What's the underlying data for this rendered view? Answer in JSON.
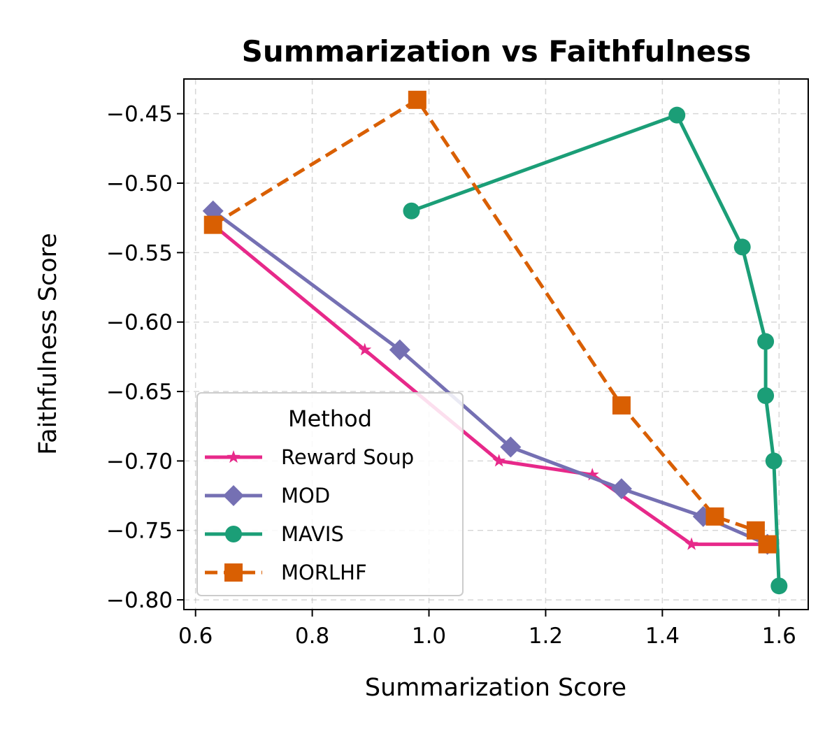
{
  "chart_data": {
    "type": "line",
    "title": "Summarization vs Faithfulness",
    "xlabel": "Summarization Score",
    "ylabel": "Faithfulness Score",
    "xlim": [
      0.58,
      1.65
    ],
    "ylim": [
      -0.807,
      -0.425
    ],
    "xticks": [
      0.6,
      0.8,
      1.0,
      1.2,
      1.4,
      1.6
    ],
    "xtick_labels": [
      "0.6",
      "0.8",
      "1.0",
      "1.2",
      "1.4",
      "1.6"
    ],
    "yticks": [
      -0.45,
      -0.5,
      -0.55,
      -0.6,
      -0.65,
      -0.7,
      -0.75,
      -0.8
    ],
    "ytick_labels": [
      "−0.45",
      "−0.50",
      "−0.55",
      "−0.60",
      "−0.65",
      "−0.70",
      "−0.75",
      "−0.80"
    ],
    "grid": true,
    "legend": {
      "title": "Method",
      "position": "lower-left"
    },
    "series": [
      {
        "name": "Reward Soup",
        "color": "#e7298a",
        "marker": "star",
        "dash": "solid",
        "x": [
          0.63,
          0.89,
          1.12,
          1.28,
          1.45,
          1.58
        ],
        "y": [
          -0.53,
          -0.62,
          -0.7,
          -0.71,
          -0.76,
          -0.76
        ]
      },
      {
        "name": "MOD",
        "color": "#7570b3",
        "marker": "diamond",
        "dash": "solid",
        "x": [
          0.63,
          0.95,
          1.14,
          1.33,
          1.47,
          1.58
        ],
        "y": [
          -0.52,
          -0.62,
          -0.69,
          -0.72,
          -0.74,
          -0.76
        ]
      },
      {
        "name": "MAVIS",
        "color": "#1b9e77",
        "marker": "circle",
        "dash": "solid",
        "x": [
          0.97,
          1.425,
          1.537,
          1.577,
          1.577,
          1.591,
          1.6
        ],
        "y": [
          -0.52,
          -0.451,
          -0.546,
          -0.614,
          -0.653,
          -0.7,
          -0.79
        ]
      },
      {
        "name": "MORLHF",
        "color": "#d95f02",
        "marker": "square",
        "dash": "dashed",
        "x": [
          0.63,
          0.98,
          1.33,
          1.49,
          1.56,
          1.58
        ],
        "y": [
          -0.53,
          -0.44,
          -0.66,
          -0.74,
          -0.75,
          -0.76
        ]
      }
    ]
  }
}
